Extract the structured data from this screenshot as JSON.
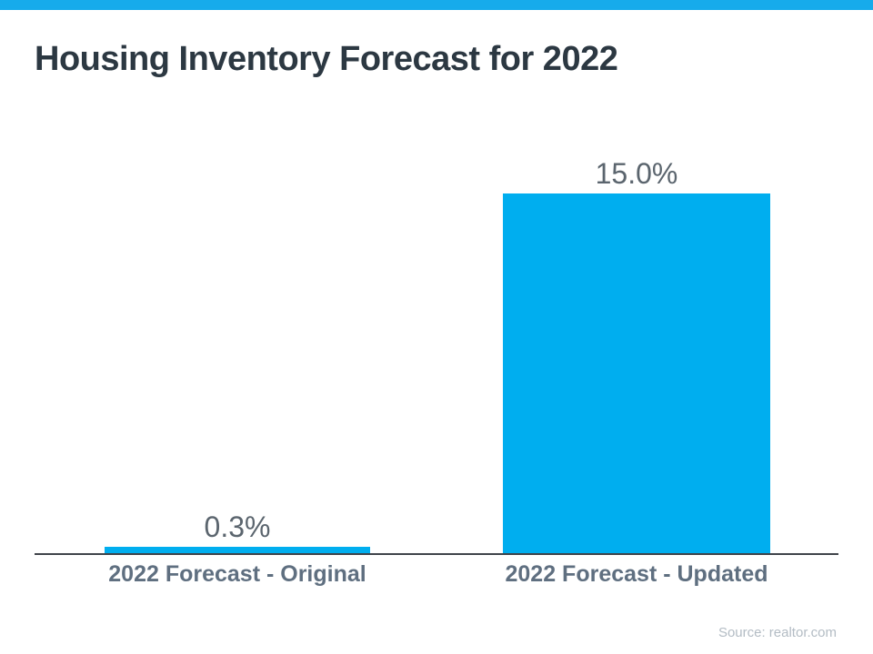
{
  "page": {
    "top_strip_color": "#16abeb",
    "background_color": "#ffffff"
  },
  "header": {
    "title": "Housing Inventory Forecast for 2022",
    "title_color": "#2c3842"
  },
  "footer": {
    "source": "Source: realtor.com",
    "source_color": "#b3bcc4"
  },
  "chart_data": {
    "type": "bar",
    "title": "Housing Inventory Forecast for 2022",
    "categories": [
      "2022 Forecast - Original",
      "2022 Forecast - Updated"
    ],
    "values": [
      0.3,
      15.0
    ],
    "value_labels": [
      "0.3%",
      "15.0%"
    ],
    "unit": "%",
    "xlabel": "",
    "ylabel": "",
    "ylim": [
      0,
      15
    ],
    "grid": false,
    "legend_position": "none",
    "bar_color": "#00aeef",
    "axis_line_color": "#3f4349",
    "value_label_color": "#5b656e",
    "category_label_color": "#5f6f80"
  }
}
